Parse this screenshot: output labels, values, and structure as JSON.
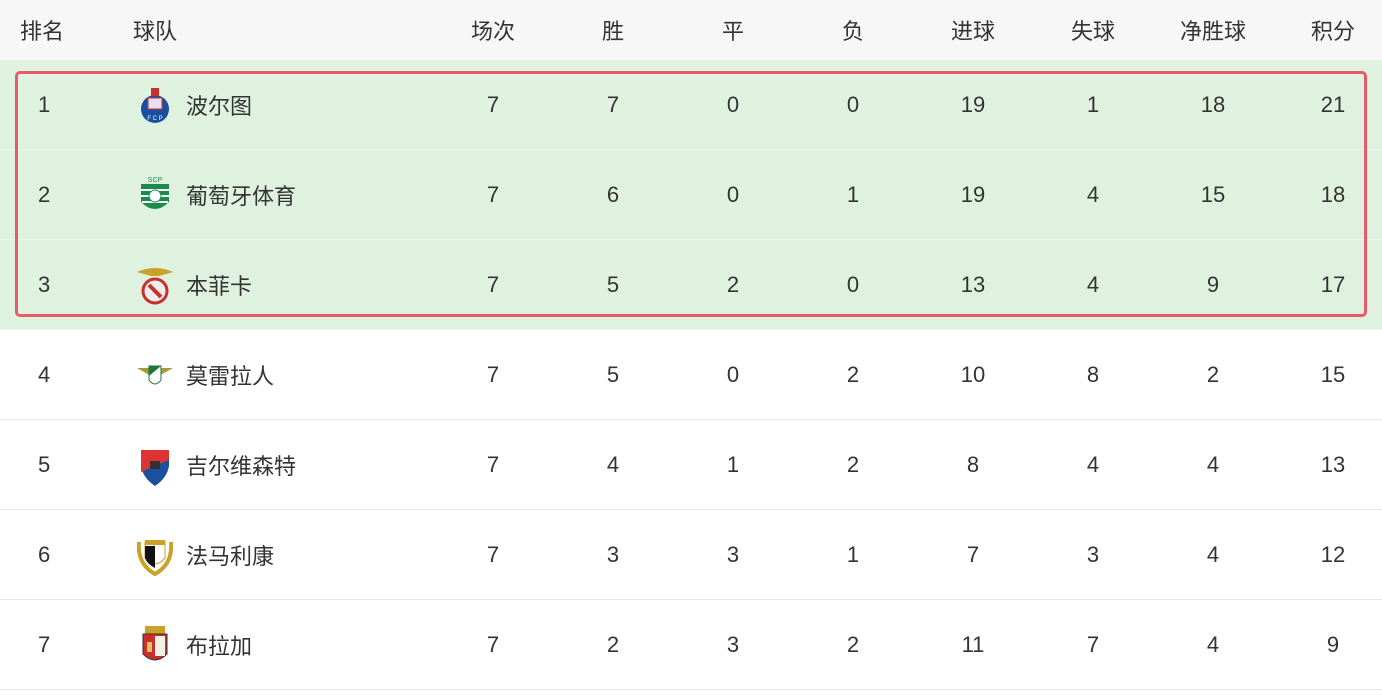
{
  "headers": {
    "rank": "排名",
    "team": "球队",
    "played": "场次",
    "won": "胜",
    "drawn": "平",
    "lost": "负",
    "gf": "进球",
    "ga": "失球",
    "gd": "净胜球",
    "pts": "积分"
  },
  "highlight_color": "#e95a68",
  "rows": [
    {
      "rank": "1",
      "team": "波尔图",
      "logo": "porto-crest-icon",
      "played": "7",
      "won": "7",
      "drawn": "0",
      "lost": "0",
      "gf": "19",
      "ga": "1",
      "gd": "18",
      "pts": "21"
    },
    {
      "rank": "2",
      "team": "葡萄牙体育",
      "logo": "sporting-crest-icon",
      "played": "7",
      "won": "6",
      "drawn": "0",
      "lost": "1",
      "gf": "19",
      "ga": "4",
      "gd": "15",
      "pts": "18"
    },
    {
      "rank": "3",
      "team": "本菲卡",
      "logo": "benfica-crest-icon",
      "played": "7",
      "won": "5",
      "drawn": "2",
      "lost": "0",
      "gf": "13",
      "ga": "4",
      "gd": "9",
      "pts": "17"
    },
    {
      "rank": "4",
      "team": "莫雷拉人",
      "logo": "moreirense-crest-icon",
      "played": "7",
      "won": "5",
      "drawn": "0",
      "lost": "2",
      "gf": "10",
      "ga": "8",
      "gd": "2",
      "pts": "15"
    },
    {
      "rank": "5",
      "team": "吉尔维森特",
      "logo": "gil-vicente-crest-icon",
      "played": "7",
      "won": "4",
      "drawn": "1",
      "lost": "2",
      "gf": "8",
      "ga": "4",
      "gd": "4",
      "pts": "13"
    },
    {
      "rank": "6",
      "team": "法马利康",
      "logo": "famalicao-crest-icon",
      "played": "7",
      "won": "3",
      "drawn": "3",
      "lost": "1",
      "gf": "7",
      "ga": "3",
      "gd": "4",
      "pts": "12"
    },
    {
      "rank": "7",
      "team": "布拉加",
      "logo": "braga-crest-icon",
      "played": "7",
      "won": "2",
      "drawn": "3",
      "lost": "2",
      "gf": "11",
      "ga": "7",
      "gd": "4",
      "pts": "9"
    }
  ]
}
